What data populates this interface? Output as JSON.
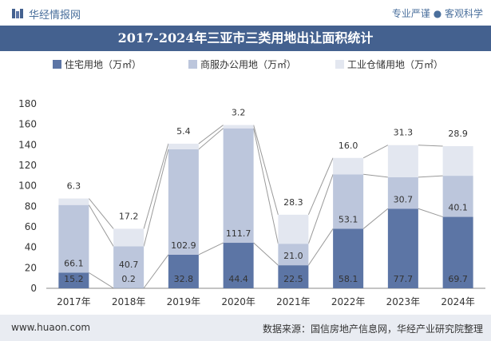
{
  "header": {
    "logo_text": "华经情报网",
    "slogan": "专业严谨 ● 客观科学"
  },
  "footer": {
    "url": "www.huaon.com",
    "source": "数据来源：国信房地产信息网，华经产业研究院整理"
  },
  "colors": {
    "residential": "#5c75a5",
    "commercial": "#bcc6dc",
    "industrial": "#e3e7f0",
    "title_bg": "#44618f",
    "footer_bg": "#e9ecf2"
  },
  "chart_data": {
    "type": "bar",
    "stacked": true,
    "title": "2017-2024年三亚市三类用地出让面积统计",
    "categories": [
      "2017年",
      "2018年",
      "2019年",
      "2020年",
      "2021年",
      "2022年",
      "2023年",
      "2024年"
    ],
    "series": [
      {
        "name": "住宅用地（万㎡）",
        "values": [
          15.2,
          0.2,
          32.8,
          44.4,
          22.5,
          58.1,
          77.7,
          69.7
        ]
      },
      {
        "name": "商服办公用地（万㎡）",
        "values": [
          66.1,
          40.7,
          102.9,
          111.7,
          21.0,
          53.1,
          30.7,
          40.1
        ]
      },
      {
        "name": "工业仓储用地（万㎡）",
        "values": [
          6.3,
          17.2,
          5.4,
          3.2,
          28.3,
          16.0,
          31.3,
          28.9
        ]
      }
    ],
    "ylim": [
      0,
      180
    ],
    "yticks": [
      0,
      20,
      40,
      60,
      80,
      100,
      120,
      140,
      160,
      180
    ],
    "legend_position": "top",
    "grid": false
  }
}
